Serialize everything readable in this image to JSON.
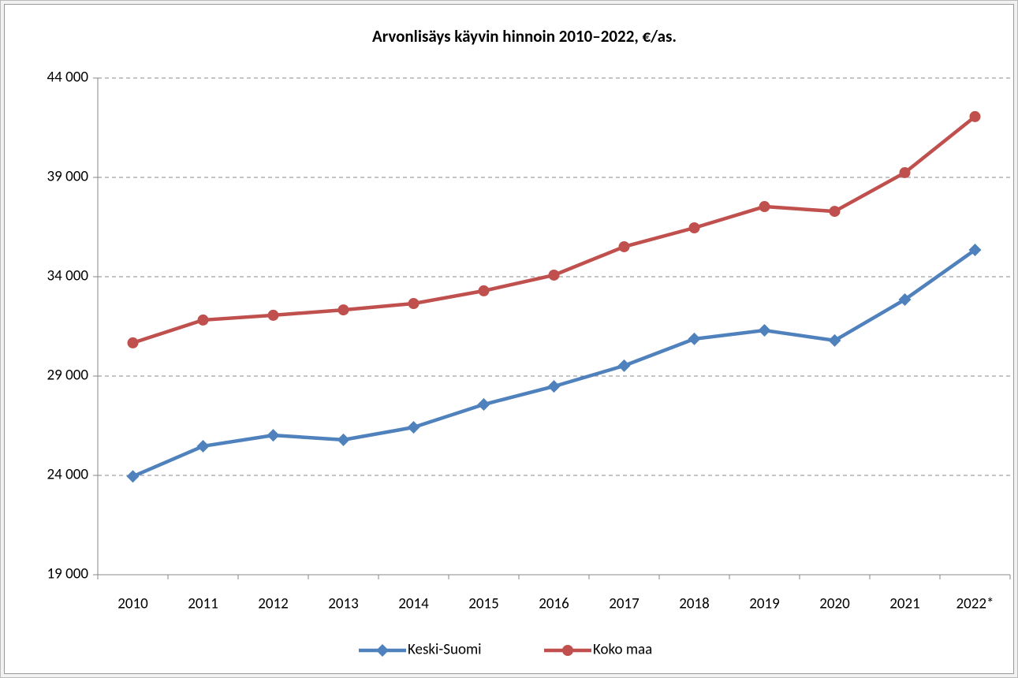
{
  "chart_data": {
    "type": "line",
    "title": "Arvonlisäys käyvin hinnoin 2010–2022, €/as.",
    "categories": [
      "2010",
      "2011",
      "2012",
      "2013",
      "2014",
      "2015",
      "2016",
      "2017",
      "2018",
      "2019",
      "2020",
      "2021",
      "2022*"
    ],
    "series": [
      {
        "name": "Keski-Suomi",
        "color": "#4f81bd",
        "marker": "diamond",
        "values": [
          23950,
          25470,
          26020,
          25790,
          26420,
          27570,
          28480,
          29520,
          30870,
          31300,
          30790,
          32850,
          35350
        ]
      },
      {
        "name": "Koko maa",
        "color": "#c0504d",
        "marker": "circle",
        "values": [
          30670,
          31820,
          32060,
          32330,
          32650,
          33290,
          34080,
          35510,
          36460,
          37530,
          37290,
          39240,
          42060
        ]
      }
    ],
    "ylim": [
      19000,
      44000
    ],
    "yticks": [
      {
        "value": 19000,
        "label": "19 000"
      },
      {
        "value": 24000,
        "label": "24 000"
      },
      {
        "value": 29000,
        "label": "29 000"
      },
      {
        "value": 34000,
        "label": "34 000"
      },
      {
        "value": 39000,
        "label": "39 000"
      },
      {
        "value": 44000,
        "label": "44 000"
      }
    ],
    "grid": true,
    "legend": "bottom"
  }
}
